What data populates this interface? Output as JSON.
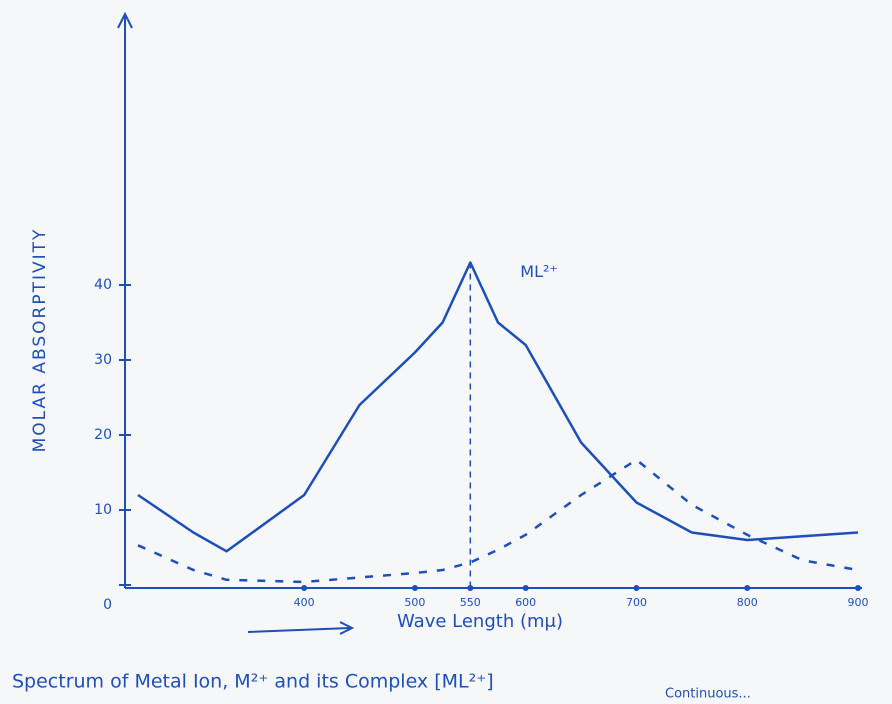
{
  "chart_data": {
    "type": "line",
    "y_label": "MOLAR ABSORPTIVITY",
    "x_label": "Wave Length (mμ)",
    "caption": "Spectrum of Metal Ion, M²⁺ and its Complex [ML²⁺]",
    "footnote": "Continuous...",
    "x": [
      250,
      300,
      330,
      400,
      450,
      500,
      525,
      550,
      575,
      600,
      650,
      700,
      750,
      800,
      850,
      900
    ],
    "series": [
      {
        "name": "ML²⁺",
        "color": "#1d4fb8",
        "dashed": false,
        "values": [
          12,
          7,
          4.5,
          12,
          24,
          31,
          35,
          43,
          35,
          32,
          19,
          11,
          7,
          6,
          6.5,
          7
        ]
      },
      {
        "color": "#1d4fb8",
        "dashed": true,
        "values": [
          5.3,
          2,
          0.7,
          0.4,
          1,
          1.6,
          2,
          3,
          4.7,
          6.7,
          12,
          16.7,
          10.7,
          6.7,
          3.3,
          2
        ]
      }
    ],
    "xlim": [
      250,
      900
    ],
    "xticks": [
      400,
      500,
      550,
      600,
      700,
      800,
      900
    ],
    "ylim": [
      0,
      72
    ],
    "yticks": [
      0,
      10,
      20,
      30,
      40
    ]
  }
}
